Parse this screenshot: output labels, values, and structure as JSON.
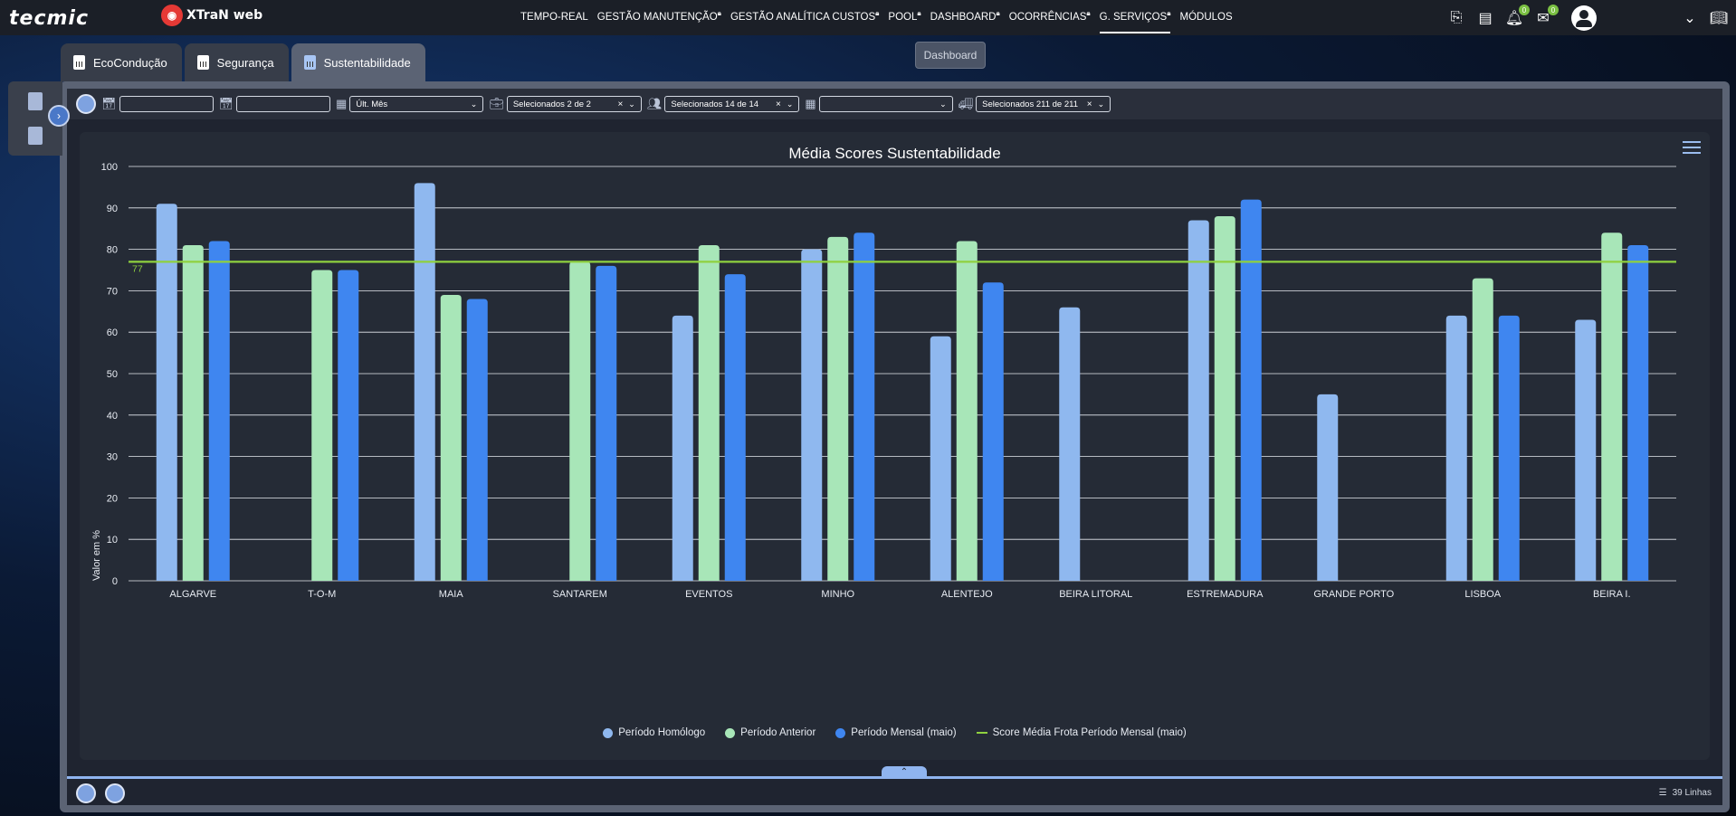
{
  "header": {
    "brand_primary": "tecmic",
    "brand_secondary": "XTraN web",
    "nav": [
      {
        "label": "TEMPO-REAL",
        "locked": false,
        "active": false
      },
      {
        "label": "GESTÃO MANUTENÇÃO",
        "locked": true,
        "active": false
      },
      {
        "label": "GESTÃO ANALÍTICA CUSTOS",
        "locked": true,
        "active": false
      },
      {
        "label": "POOL",
        "locked": true,
        "active": false
      },
      {
        "label": "DASHBOARD",
        "locked": true,
        "active": false
      },
      {
        "label": "OCORRÊNCIAS",
        "locked": true,
        "active": false
      },
      {
        "label": "G. SERVIÇOS",
        "locked": true,
        "active": true
      },
      {
        "label": "MÓDULOS",
        "locked": false,
        "active": false
      }
    ],
    "notifications_count": "0",
    "messages_count": "0",
    "tooltip": "Dashboard"
  },
  "tabs": [
    {
      "label": "EcoCondução",
      "active": false
    },
    {
      "label": "Segurança",
      "active": false
    },
    {
      "label": "Sustentabilidade",
      "active": true
    }
  ],
  "filters": {
    "period": "Últ. Mês",
    "clients": "Selecionados 2 de 2",
    "groups": "Selecionados 14 de 14",
    "category": "",
    "vehicles": "Selecionados 211 de 211"
  },
  "footer": {
    "row_count": "39 Linhas"
  },
  "chart_data": {
    "type": "bar",
    "title": "Média Scores Sustentabilidade",
    "ylabel": "Valor em %",
    "xlabel": "",
    "ylim": [
      0,
      100
    ],
    "yticks": [
      0,
      10,
      20,
      30,
      40,
      50,
      60,
      70,
      80,
      90,
      100
    ],
    "grid": true,
    "legend_position": "bottom",
    "categories": [
      "ALGARVE",
      "T-O-M",
      "MAIA",
      "SANTAREM",
      "EVENTOS",
      "MINHO",
      "ALENTEJO",
      "BEIRA LITORAL",
      "ESTREMADURA",
      "GRANDE PORTO",
      "LISBOA",
      "BEIRA I."
    ],
    "series": [
      {
        "name": "Período Homólogo",
        "color": "#8fb8ef",
        "values": [
          91,
          null,
          96,
          null,
          64,
          80,
          59,
          66,
          87,
          45,
          64,
          63
        ]
      },
      {
        "name": "Período Anterior",
        "color": "#a8e6b8",
        "values": [
          81,
          75,
          69,
          77,
          81,
          83,
          82,
          null,
          88,
          null,
          73,
          84
        ]
      },
      {
        "name": "Período Mensal (maio)",
        "color": "#3f86f0",
        "values": [
          82,
          75,
          68,
          76,
          74,
          84,
          72,
          null,
          92,
          null,
          64,
          81
        ]
      }
    ],
    "reference_line": {
      "name": "Score Média Frota Período Mensal (maio)",
      "value": 77,
      "label": "77",
      "color": "#8fd13f"
    }
  }
}
